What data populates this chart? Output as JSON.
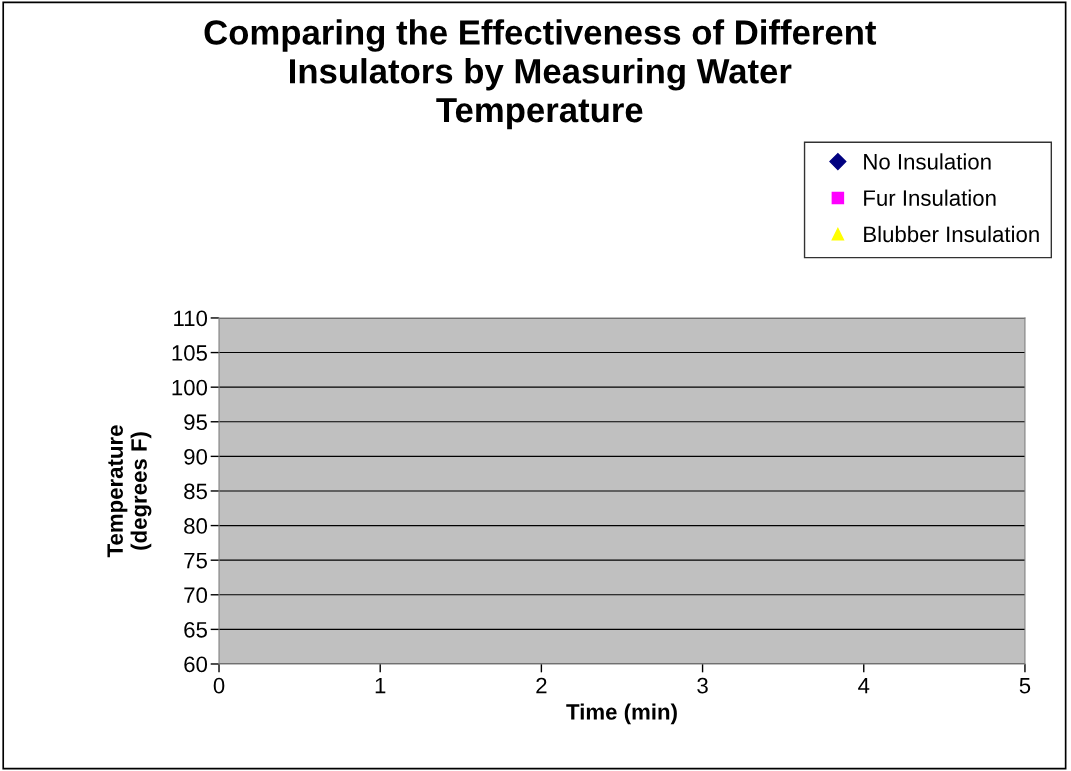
{
  "chart_data": {
    "type": "scatter",
    "title": "Comparing the Effectiveness of Different\nInsulators by Measuring Water\nTemperature",
    "xlabel": "Time (min)",
    "ylabel": "Temperature\n(degrees F)",
    "series": [
      {
        "name": "No Insulation",
        "color": "#000080",
        "marker": "diamond",
        "values": [
          null,
          null,
          null,
          null,
          null,
          null
        ]
      },
      {
        "name": "Fur Insulation",
        "color": "#ff00ff",
        "marker": "square",
        "values": [
          null,
          null,
          null,
          null,
          null,
          null
        ]
      },
      {
        "name": "Blubber Insulation",
        "color": "#ffff00",
        "marker": "triangle",
        "values": [
          null,
          null,
          null,
          null,
          null,
          null
        ]
      }
    ],
    "categories": [
      "0",
      "1",
      "2",
      "3",
      "4",
      "5"
    ],
    "ylim": [
      60,
      110
    ],
    "yticks": [
      60,
      65,
      70,
      75,
      80,
      85,
      90,
      95,
      100,
      105,
      110
    ],
    "grid": "y",
    "legend": "top right"
  }
}
